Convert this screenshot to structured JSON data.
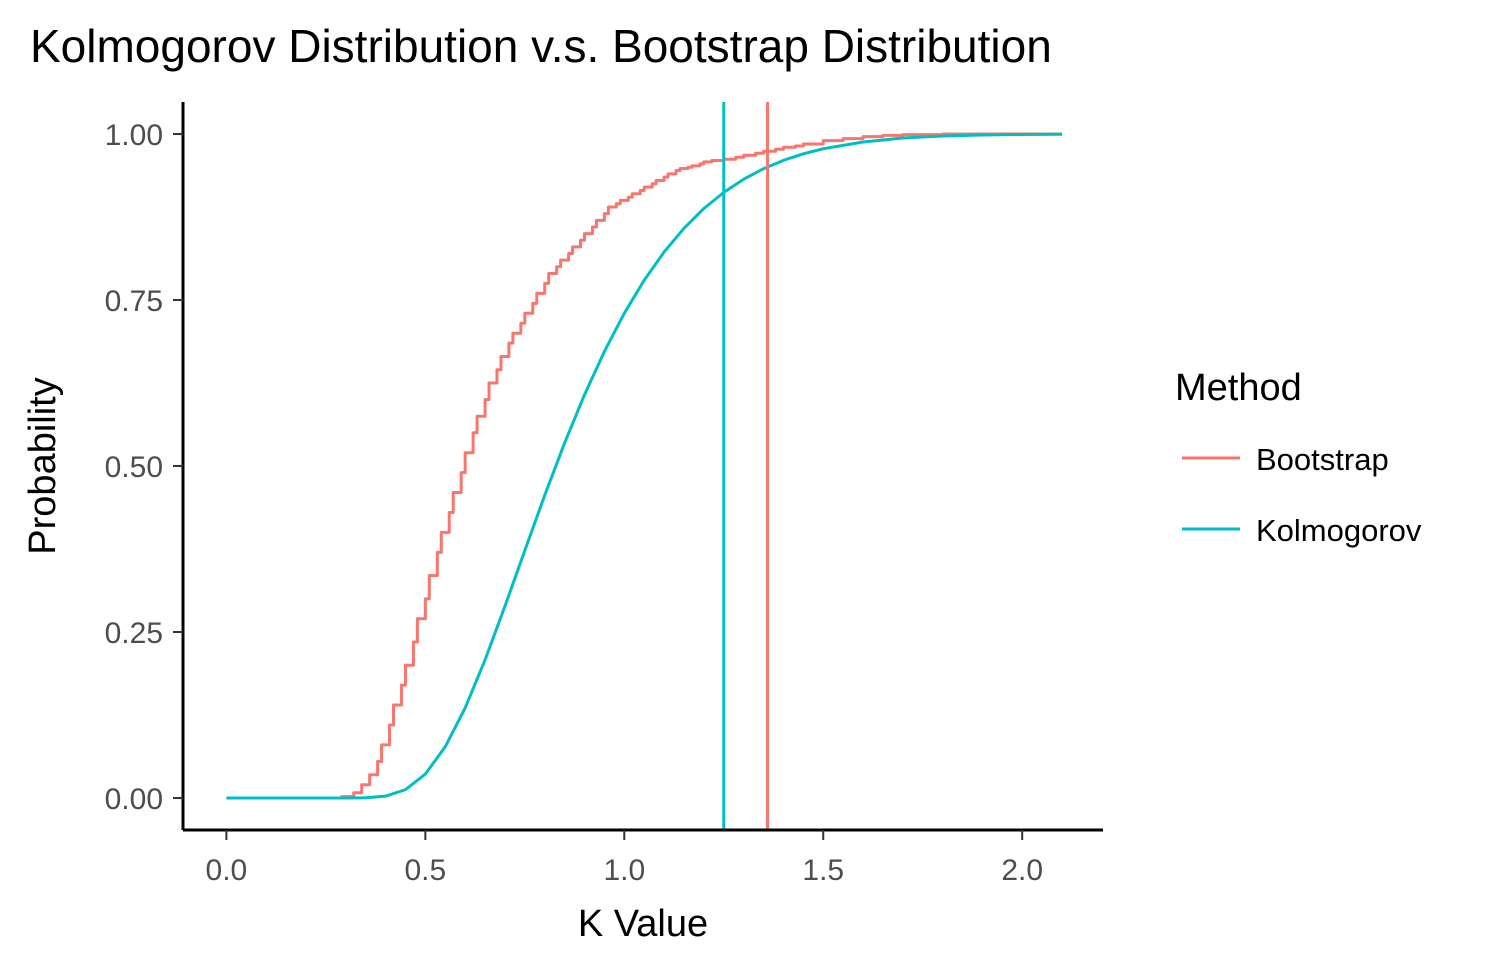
{
  "chart_data": {
    "type": "line",
    "title": "Kolmogorov Distribution v.s. Bootstrap Distribution",
    "xlabel": "K Value",
    "ylabel": "Probability",
    "xlim": [
      -0.11,
      2.2
    ],
    "ylim": [
      -0.05,
      1.05
    ],
    "x_ticks": [
      0.0,
      0.5,
      1.0,
      1.5,
      2.0
    ],
    "x_tick_labels": [
      "0.0",
      "0.5",
      "1.0",
      "1.5",
      "2.0"
    ],
    "y_ticks": [
      0.0,
      0.25,
      0.5,
      0.75,
      1.0
    ],
    "y_tick_labels": [
      "0.00",
      "0.25",
      "0.50",
      "0.75",
      "1.00"
    ],
    "grid": false,
    "legend": {
      "title": "Method",
      "position": "right",
      "entries": [
        {
          "label": "Bootstrap",
          "color": "#F8766D"
        },
        {
          "label": "Kolmogorov",
          "color": "#00BFC4"
        }
      ]
    },
    "series": [
      {
        "name": "Bootstrap",
        "color": "#F8766D",
        "kind": "step",
        "x": [
          0.0,
          0.29,
          0.32,
          0.34,
          0.36,
          0.38,
          0.39,
          0.41,
          0.42,
          0.44,
          0.45,
          0.47,
          0.48,
          0.5,
          0.51,
          0.53,
          0.54,
          0.56,
          0.57,
          0.59,
          0.6,
          0.62,
          0.63,
          0.65,
          0.66,
          0.68,
          0.69,
          0.71,
          0.72,
          0.74,
          0.75,
          0.77,
          0.78,
          0.8,
          0.81,
          0.83,
          0.84,
          0.86,
          0.87,
          0.89,
          0.9,
          0.92,
          0.93,
          0.95,
          0.96,
          0.98,
          0.99,
          1.01,
          1.02,
          1.04,
          1.05,
          1.07,
          1.08,
          1.1,
          1.11,
          1.13,
          1.14,
          1.16,
          1.17,
          1.19,
          1.2,
          1.22,
          1.25,
          1.28,
          1.3,
          1.33,
          1.35,
          1.38,
          1.4,
          1.43,
          1.45,
          1.5,
          1.55,
          1.6,
          1.65,
          1.7,
          1.8,
          1.9,
          2.0,
          2.1
        ],
        "y": [
          0.0,
          0.002,
          0.008,
          0.02,
          0.035,
          0.055,
          0.08,
          0.11,
          0.14,
          0.17,
          0.2,
          0.235,
          0.27,
          0.3,
          0.335,
          0.37,
          0.4,
          0.43,
          0.46,
          0.49,
          0.52,
          0.55,
          0.575,
          0.6,
          0.625,
          0.645,
          0.665,
          0.685,
          0.7,
          0.715,
          0.73,
          0.745,
          0.76,
          0.775,
          0.79,
          0.8,
          0.81,
          0.82,
          0.83,
          0.84,
          0.85,
          0.86,
          0.87,
          0.88,
          0.89,
          0.895,
          0.9,
          0.905,
          0.91,
          0.915,
          0.92,
          0.925,
          0.93,
          0.935,
          0.94,
          0.945,
          0.948,
          0.95,
          0.952,
          0.955,
          0.958,
          0.96,
          0.962,
          0.965,
          0.968,
          0.971,
          0.974,
          0.977,
          0.98,
          0.982,
          0.985,
          0.99,
          0.993,
          0.996,
          0.998,
          0.999,
          1.0,
          1.0,
          1.0,
          1.0
        ]
      },
      {
        "name": "Kolmogorov",
        "color": "#00BFC4",
        "kind": "line",
        "x": [
          0.0,
          0.2,
          0.25,
          0.3,
          0.35,
          0.4,
          0.45,
          0.5,
          0.55,
          0.6,
          0.65,
          0.7,
          0.75,
          0.8,
          0.85,
          0.9,
          0.95,
          1.0,
          1.05,
          1.1,
          1.15,
          1.2,
          1.25,
          1.3,
          1.35,
          1.4,
          1.45,
          1.5,
          1.6,
          1.7,
          1.8,
          1.9,
          2.0,
          2.1
        ],
        "y": [
          0.0,
          0.0,
          0.0,
          1e-05,
          0.0003,
          0.0028,
          0.0126,
          0.0361,
          0.0772,
          0.1357,
          0.208,
          0.2888,
          0.3728,
          0.4559,
          0.5347,
          0.6073,
          0.6725,
          0.73,
          0.7798,
          0.8223,
          0.858,
          0.8878,
          0.9121,
          0.9319,
          0.9478,
          0.9603,
          0.9702,
          0.9778,
          0.988,
          0.9939,
          0.9969,
          0.9985,
          0.9993,
          0.9997
        ]
      }
    ],
    "reference_lines": [
      {
        "series": "Kolmogorov",
        "x": 1.25,
        "color": "#00BFC4"
      },
      {
        "series": "Bootstrap",
        "x": 1.36,
        "color": "#F8766D"
      }
    ]
  }
}
